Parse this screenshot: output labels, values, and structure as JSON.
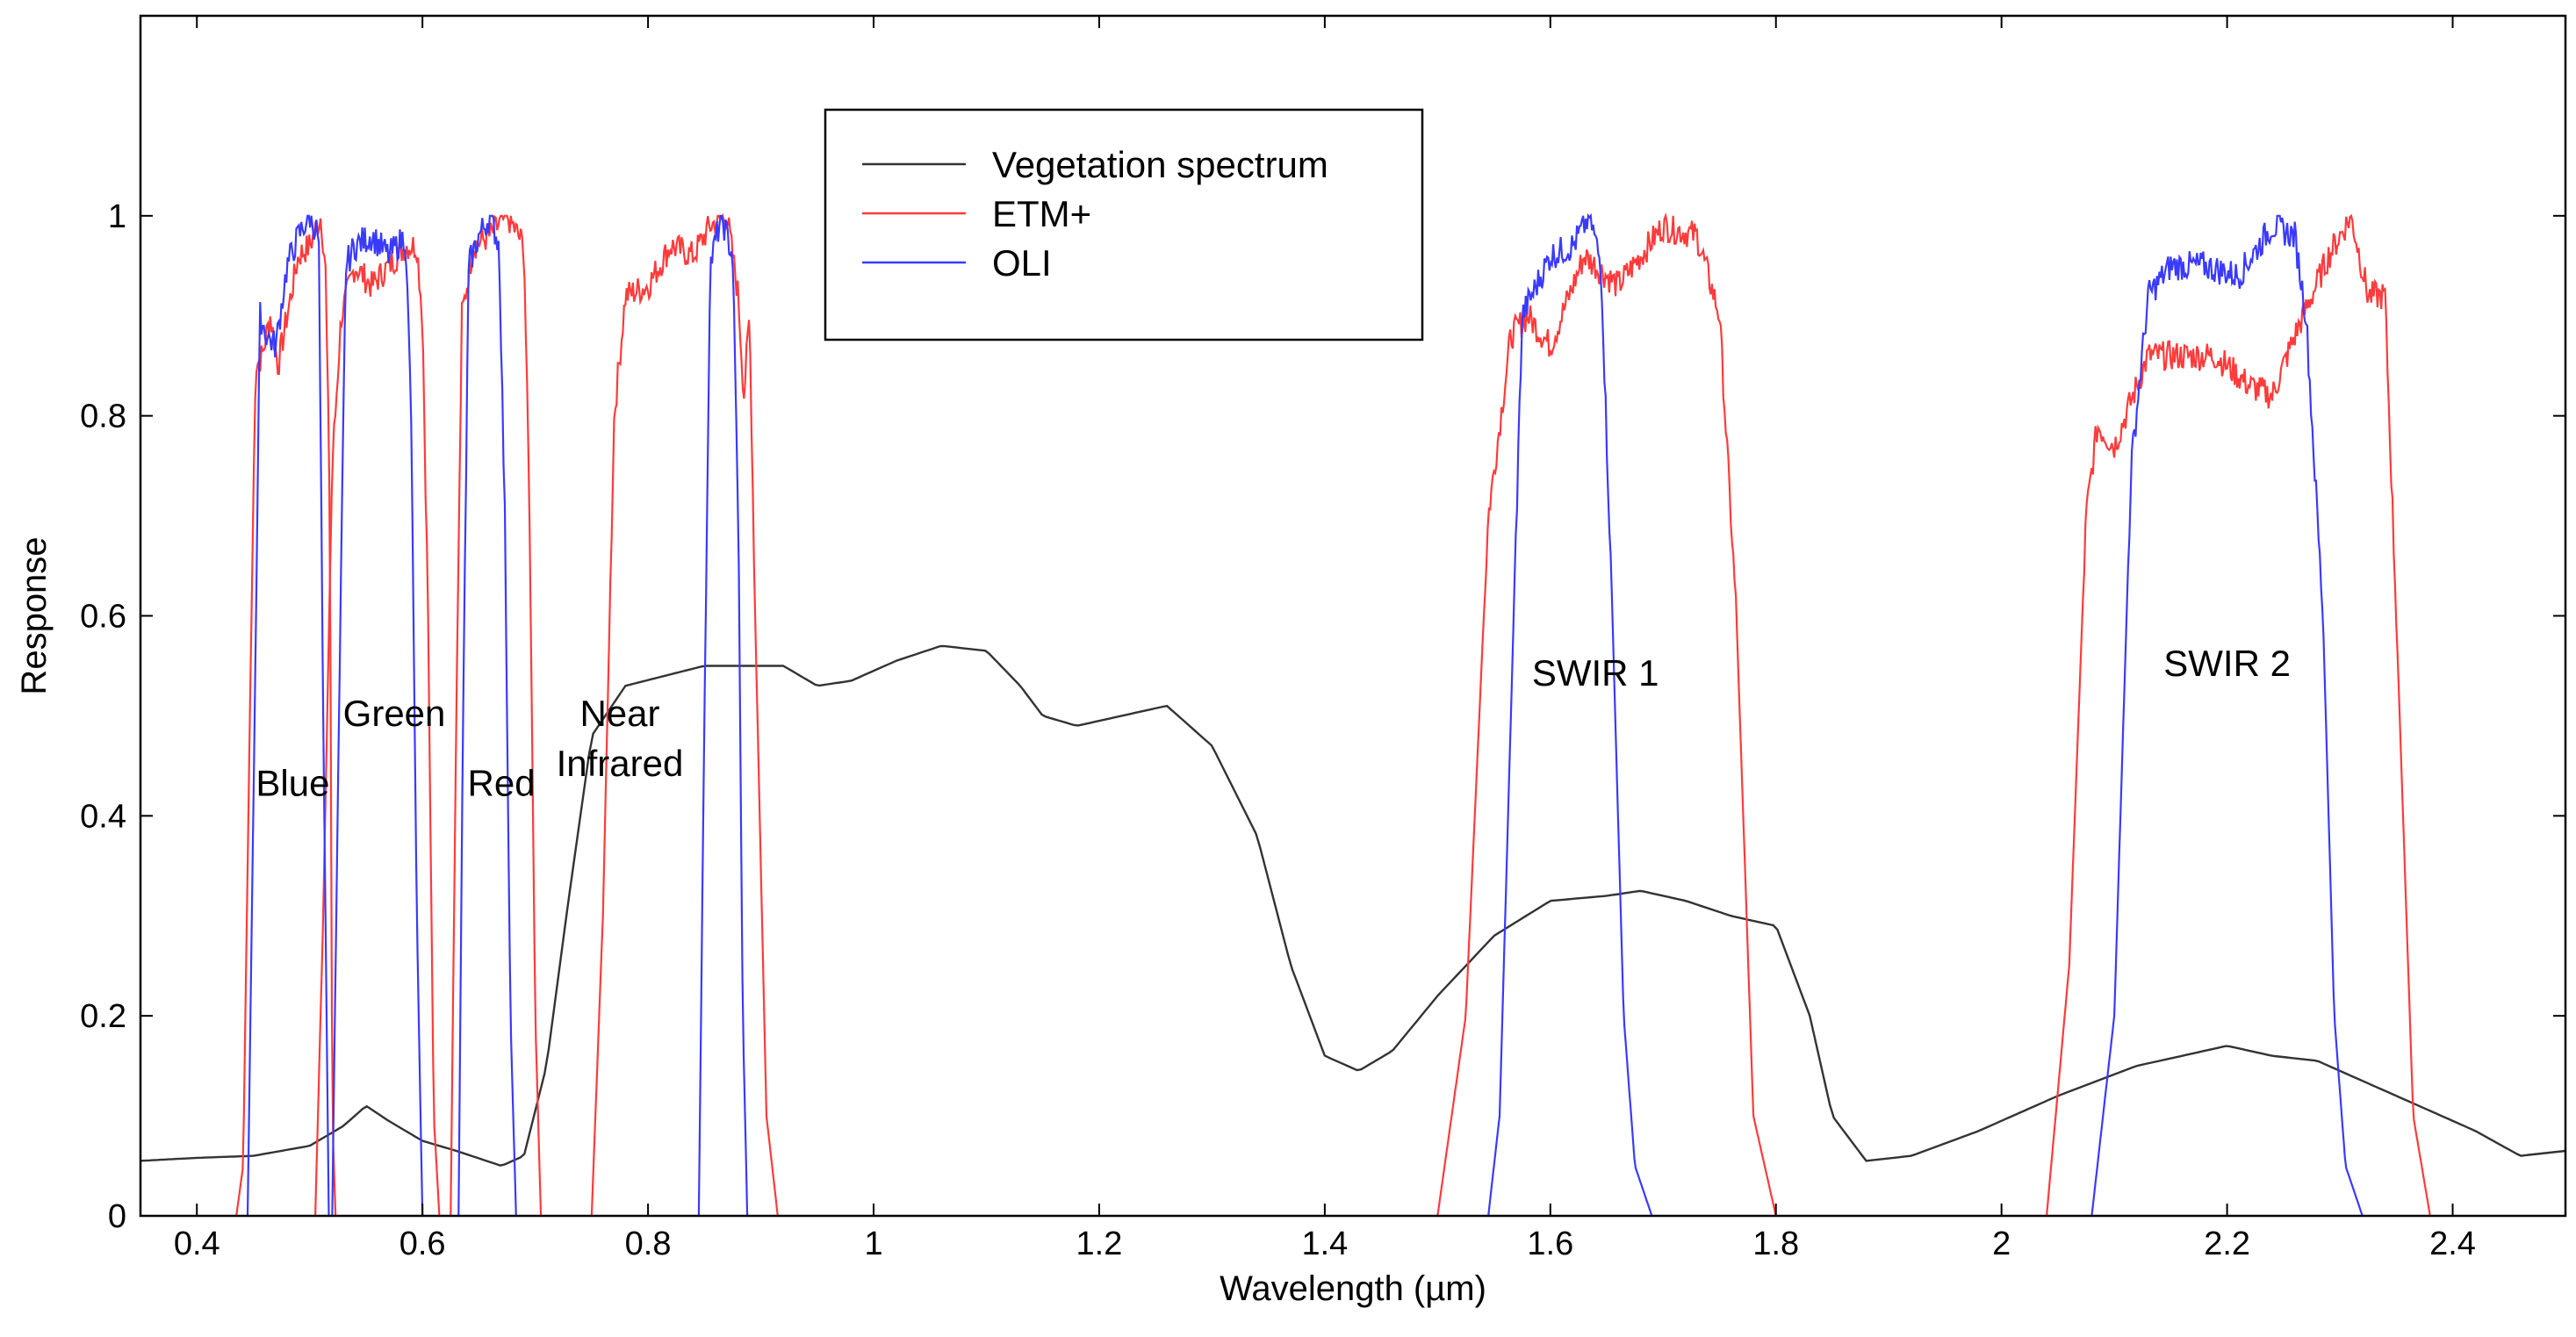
{
  "chart_data": {
    "type": "line",
    "title": "",
    "xlabel": "Wavelength (µm)",
    "ylabel": "Response",
    "xlim": [
      0.35,
      2.5
    ],
    "ylim": [
      0,
      1.2
    ],
    "grid": false,
    "legend_position": "top-center",
    "xticks": [
      0.4,
      0.6,
      0.8,
      1,
      1.2,
      1.4,
      1.6,
      1.8,
      2,
      2.2,
      2.4
    ],
    "xtick_labels": [
      "0.4",
      "0.6",
      "0.8",
      "1",
      "1.2",
      "1.4",
      "1.6",
      "1.8",
      "2",
      "2.2",
      "2.4"
    ],
    "yticks": [
      0,
      0.2,
      0.4,
      0.6,
      0.8,
      1
    ],
    "ytick_labels": [
      "0",
      "0.2",
      "0.4",
      "0.6",
      "0.8",
      "1"
    ],
    "legend": [
      {
        "name": "Vegetation spectrum",
        "color": "#333333"
      },
      {
        "name": "ETM+",
        "color": "#ff3b3b"
      },
      {
        "name": "OLI",
        "color": "#3a3aff"
      }
    ],
    "series": [
      {
        "name": "Vegetation spectrum",
        "color": "#333333",
        "x": [
          0.35,
          0.4,
          0.45,
          0.5,
          0.53,
          0.55,
          0.57,
          0.6,
          0.63,
          0.67,
          0.69,
          0.71,
          0.73,
          0.75,
          0.78,
          0.85,
          0.92,
          0.95,
          0.98,
          1.02,
          1.06,
          1.1,
          1.13,
          1.15,
          1.18,
          1.22,
          1.26,
          1.3,
          1.34,
          1.37,
          1.4,
          1.43,
          1.46,
          1.5,
          1.55,
          1.6,
          1.65,
          1.68,
          1.72,
          1.76,
          1.8,
          1.83,
          1.85,
          1.88,
          1.92,
          1.98,
          2.05,
          2.12,
          2.18,
          2.2,
          2.24,
          2.28,
          2.35,
          2.42,
          2.46,
          2.5
        ],
        "y": [
          0.055,
          0.058,
          0.06,
          0.07,
          0.09,
          0.11,
          0.095,
          0.075,
          0.065,
          0.05,
          0.06,
          0.15,
          0.32,
          0.48,
          0.53,
          0.55,
          0.55,
          0.53,
          0.535,
          0.555,
          0.57,
          0.565,
          0.53,
          0.5,
          0.49,
          0.5,
          0.51,
          0.47,
          0.38,
          0.25,
          0.16,
          0.145,
          0.165,
          0.22,
          0.28,
          0.315,
          0.32,
          0.325,
          0.315,
          0.3,
          0.29,
          0.2,
          0.1,
          0.055,
          0.06,
          0.085,
          0.12,
          0.15,
          0.165,
          0.17,
          0.16,
          0.155,
          0.12,
          0.085,
          0.06,
          0.065
        ]
      },
      {
        "name": "ETM+",
        "color": "#ff3b3b",
        "bands": [
          {
            "x": [
              0.435,
              0.441,
              0.447,
              0.452,
              0.458,
              0.465,
              0.472,
              0.48,
              0.49,
              0.5,
              0.51,
              0.514,
              0.518,
              0.52,
              0.523
            ],
            "y": [
              0,
              0.05,
              0.5,
              0.85,
              0.86,
              0.9,
              0.85,
              0.9,
              0.96,
              0.97,
              1.0,
              0.95,
              0.7,
              0.1,
              0
            ]
          },
          {
            "x": [
              0.505,
              0.512,
              0.52,
              0.528,
              0.54,
              0.555,
              0.57,
              0.585,
              0.595,
              0.6,
              0.605,
              0.61,
              0.615
            ],
            "y": [
              0,
              0.3,
              0.75,
              0.9,
              0.95,
              0.93,
              0.95,
              0.97,
              0.97,
              0.9,
              0.6,
              0.1,
              0
            ]
          },
          {
            "x": [
              0.625,
              0.63,
              0.635,
              0.645,
              0.66,
              0.675,
              0.69,
              0.695,
              0.7,
              0.705
            ],
            "y": [
              0,
              0.5,
              0.9,
              0.97,
              0.98,
              1.0,
              0.97,
              0.7,
              0.2,
              0
            ]
          },
          {
            "x": [
              0.75,
              0.76,
              0.77,
              0.78,
              0.8,
              0.82,
              0.84,
              0.855,
              0.87,
              0.88,
              0.885,
              0.89,
              0.895,
              0.905,
              0.915
            ],
            "y": [
              0,
              0.3,
              0.8,
              0.92,
              0.93,
              0.97,
              0.96,
              0.99,
              1.0,
              0.92,
              0.82,
              0.9,
              0.6,
              0.1,
              0
            ]
          },
          {
            "x": [
              1.5,
              1.525,
              1.545,
              1.565,
              1.58,
              1.6,
              1.63,
              1.66,
              1.68,
              1.7,
              1.73,
              1.75,
              1.765,
              1.78,
              1.8
            ],
            "y": [
              0,
              0.2,
              0.7,
              0.88,
              0.9,
              0.87,
              0.96,
              0.93,
              0.96,
              0.99,
              0.98,
              0.9,
              0.6,
              0.1,
              0
            ]
          },
          {
            "x": [
              2.04,
              2.06,
              2.075,
              2.085,
              2.1,
              2.13,
              2.16,
              2.19,
              2.22,
              2.24,
              2.26,
              2.29,
              2.31,
              2.325,
              2.34,
              2.35,
              2.365,
              2.38
            ],
            "y": [
              0,
              0.25,
              0.7,
              0.79,
              0.77,
              0.86,
              0.86,
              0.86,
              0.83,
              0.82,
              0.88,
              0.96,
              1.0,
              0.92,
              0.92,
              0.6,
              0.1,
              0
            ]
          }
        ]
      },
      {
        "name": "OLI",
        "color": "#3a3aff",
        "bands": [
          {
            "x": [
              0.445,
              0.45,
              0.456,
              0.462,
              0.47,
              0.48,
              0.49,
              0.5,
              0.508,
              0.512,
              0.517
            ],
            "y": [
              0,
              0.4,
              0.9,
              0.88,
              0.87,
              0.95,
              0.98,
              1.0,
              0.98,
              0.5,
              0
            ]
          },
          {
            "x": [
              0.52,
              0.526,
              0.532,
              0.54,
              0.555,
              0.57,
              0.585,
              0.59,
              0.595,
              0.6
            ],
            "y": [
              0,
              0.5,
              0.95,
              0.97,
              0.98,
              0.96,
              0.98,
              0.8,
              0.3,
              0
            ]
          },
          {
            "x": [
              0.632,
              0.636,
              0.641,
              0.65,
              0.66,
              0.668,
              0.673,
              0.678,
              0.683
            ],
            "y": [
              0,
              0.5,
              0.95,
              0.98,
              1.0,
              0.97,
              0.7,
              0.2,
              0
            ]
          },
          {
            "x": [
              0.845,
              0.85,
              0.855,
              0.865,
              0.875,
              0.88,
              0.884,
              0.888
            ],
            "y": [
              0,
              0.5,
              0.95,
              1.0,
              0.96,
              0.7,
              0.2,
              0
            ]
          },
          {
            "x": [
              1.545,
              1.555,
              1.565,
              1.575,
              1.6,
              1.62,
              1.635,
              1.645,
              1.655,
              1.665,
              1.675,
              1.69
            ],
            "y": [
              0,
              0.1,
              0.5,
              0.9,
              0.96,
              0.97,
              1.0,
              0.95,
              0.6,
              0.2,
              0.05,
              0
            ]
          },
          {
            "x": [
              2.08,
              2.1,
              2.115,
              2.13,
              2.15,
              2.18,
              2.21,
              2.24,
              2.26,
              2.27,
              2.285,
              2.295,
              2.305,
              2.32
            ],
            "y": [
              0,
              0.2,
              0.75,
              0.92,
              0.95,
              0.95,
              0.94,
              0.99,
              0.98,
              0.9,
              0.6,
              0.2,
              0.05,
              0
            ]
          }
        ]
      }
    ],
    "annotations": [
      {
        "text": "Blue",
        "x": 0.485,
        "y": 0.42
      },
      {
        "text": "Green",
        "x": 0.575,
        "y": 0.49
      },
      {
        "text": "Red",
        "x": 0.67,
        "y": 0.42
      },
      {
        "text": "Near",
        "x": 0.775,
        "y": 0.49
      },
      {
        "text": "Infrared",
        "x": 0.775,
        "y": 0.44
      },
      {
        "text": "SWIR 1",
        "x": 1.64,
        "y": 0.53
      },
      {
        "text": "SWIR 2",
        "x": 2.2,
        "y": 0.54
      }
    ]
  }
}
